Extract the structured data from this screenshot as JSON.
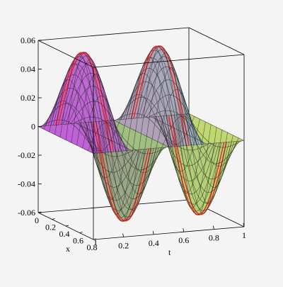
{
  "chart_data": {
    "type": "surface3d",
    "z_formula_note": "",
    "xlabel": "x",
    "ylabel": "t",
    "zlabel": "",
    "x_range": [
      0,
      0.8
    ],
    "t_range": [
      0,
      1
    ],
    "z_range": [
      -0.06,
      0.06
    ],
    "z_amplitude": 0.06,
    "x_ticks": [
      "0",
      "0.2",
      "0.4",
      "0.6",
      "0.8"
    ],
    "t_ticks": [
      "0.2",
      "0.4",
      "0.6",
      "0.8",
      "1"
    ],
    "t_axis_extra_tick": "1",
    "z_ticks": [
      "0.06",
      "0.04",
      "0.02",
      "0",
      "-0.02",
      "-0.04",
      "-0.06"
    ],
    "peaks": 4,
    "colors": {
      "background": "#f4f4f4",
      "mesh": "#222222",
      "highlight": "#e0201e",
      "surface_start": "#c060d8",
      "surface_mid": "#b0a0b8",
      "surface_end": "#80d8c8",
      "trough_mid": "#a0c080",
      "trough_end": "#c0d870"
    }
  }
}
